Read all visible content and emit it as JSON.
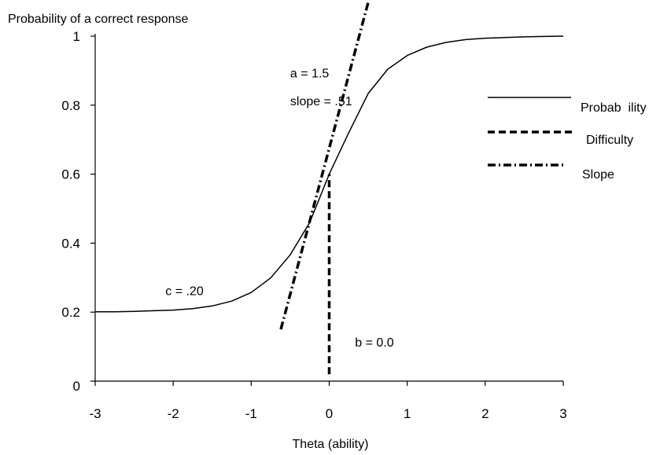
{
  "chart_data": {
    "type": "line",
    "title": "",
    "xlabel": "Theta (ability)",
    "ylabel": "Probability of a correct response",
    "xlim": [
      -3,
      3
    ],
    "ylim": [
      0,
      1
    ],
    "x_ticks": [
      "-3",
      "-2",
      "-1",
      "0",
      "1",
      "2",
      "3"
    ],
    "y_ticks": [
      "0",
      "0.2",
      "0.4",
      "0.6",
      "0.8",
      "1"
    ],
    "grid": false,
    "legend_position": "right",
    "series": [
      {
        "name": "Probab  ility",
        "style": "solid",
        "x": [
          -3,
          -2.75,
          -2.5,
          -2.25,
          -2,
          -1.75,
          -1.5,
          -1.25,
          -1,
          -0.75,
          -0.5,
          -0.25,
          0,
          0.25,
          0.5,
          0.75,
          1,
          1.25,
          1.5,
          1.75,
          2,
          2.25,
          2.5,
          2.75,
          3
        ],
        "y": [
          0.201,
          0.201,
          0.202,
          0.204,
          0.206,
          0.21,
          0.218,
          0.232,
          0.257,
          0.299,
          0.366,
          0.46,
          0.6,
          0.72,
          0.834,
          0.904,
          0.944,
          0.968,
          0.982,
          0.99,
          0.994,
          0.996,
          0.998,
          0.999,
          1.0
        ]
      },
      {
        "name": "Difficulty",
        "style": "dashed",
        "x": [
          0,
          0
        ],
        "y": [
          0.02,
          0.6
        ]
      },
      {
        "name": "Slope",
        "style": "dash-dot",
        "x": [
          -0.62,
          0.62
        ],
        "y": [
          0.15,
          1.2
        ]
      }
    ],
    "annotations": [
      {
        "text": "a = 1.5",
        "x": -0.5,
        "y": 0.88
      },
      {
        "text": "slope = .51",
        "x": -0.5,
        "y": 0.8
      },
      {
        "text": "c = .20",
        "x": -2.1,
        "y": 0.25
      },
      {
        "text": "b = 0.0",
        "x": 0.33,
        "y": 0.1
      }
    ]
  }
}
